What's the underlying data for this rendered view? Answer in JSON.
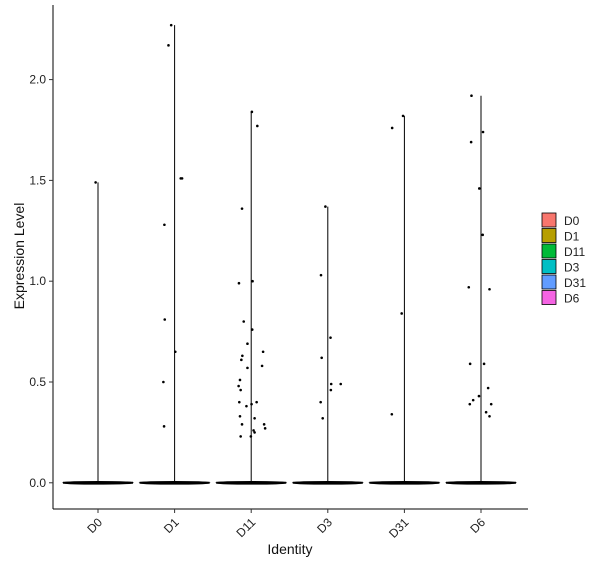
{
  "chart_data": {
    "type": "violin",
    "xlabel": "Identity",
    "ylabel": "Expression Level",
    "ylim": [
      -0.13,
      2.37
    ],
    "yticks": [
      "0.0",
      "0.5",
      "1.0",
      "1.5",
      "2.0"
    ],
    "ytick_values": [
      0.0,
      0.5,
      1.0,
      1.5,
      2.0
    ],
    "grid": false,
    "legend_position": "right",
    "categories": [
      "D0",
      "D1",
      "D11",
      "D3",
      "D31",
      "D6"
    ],
    "series": [
      {
        "name": "D0",
        "color": "#F8766D",
        "max": 1.49,
        "points": [
          [
            -0.07,
            1.49
          ]
        ]
      },
      {
        "name": "D1",
        "color": "#B79F00",
        "max": 2.27,
        "points": [
          [
            -0.1,
            2.27
          ],
          [
            -0.18,
            2.17
          ],
          [
            0.18,
            1.51
          ],
          [
            0.22,
            1.51
          ],
          [
            -0.3,
            1.28
          ],
          [
            -0.29,
            0.81
          ],
          [
            0.02,
            0.65
          ],
          [
            -0.33,
            0.5
          ],
          [
            -0.31,
            0.28
          ]
        ]
      },
      {
        "name": "D11",
        "color": "#00BA38",
        "max": 1.84,
        "points": [
          [
            0.02,
            1.84
          ],
          [
            0.18,
            1.77
          ],
          [
            -0.27,
            1.36
          ],
          [
            -0.36,
            0.99
          ],
          [
            0.04,
            1.0
          ],
          [
            -0.22,
            0.8
          ],
          [
            0.03,
            0.76
          ],
          [
            -0.11,
            0.69
          ],
          [
            -0.26,
            0.63
          ],
          [
            -0.29,
            0.61
          ],
          [
            0.35,
            0.65
          ],
          [
            -0.11,
            0.57
          ],
          [
            0.32,
            0.58
          ],
          [
            -0.37,
            0.48
          ],
          [
            -0.33,
            0.51
          ],
          [
            -0.31,
            0.46
          ],
          [
            -0.35,
            0.4
          ],
          [
            0.16,
            0.4
          ],
          [
            -0.14,
            0.38
          ],
          [
            0.01,
            0.39
          ],
          [
            -0.33,
            0.33
          ],
          [
            0.1,
            0.32
          ],
          [
            -0.27,
            0.29
          ],
          [
            0.38,
            0.29
          ],
          [
            0.41,
            0.27
          ],
          [
            0.07,
            0.26
          ],
          [
            0.1,
            0.25
          ],
          [
            -0.31,
            0.23
          ],
          [
            -0.01,
            0.23
          ]
        ]
      },
      {
        "name": "D3",
        "color": "#00BFC4",
        "max": 1.37,
        "points": [
          [
            -0.07,
            1.37
          ],
          [
            -0.2,
            1.03
          ],
          [
            0.08,
            0.72
          ],
          [
            -0.18,
            0.62
          ],
          [
            0.1,
            0.49
          ],
          [
            0.38,
            0.49
          ],
          [
            0.09,
            0.46
          ],
          [
            -0.21,
            0.4
          ],
          [
            -0.15,
            0.32
          ]
        ]
      },
      {
        "name": "D31",
        "color": "#619CFF",
        "max": 1.82,
        "points": [
          [
            -0.04,
            1.82
          ],
          [
            -0.36,
            1.76
          ],
          [
            -0.08,
            0.84
          ],
          [
            -0.37,
            0.34
          ]
        ]
      },
      {
        "name": "D6",
        "color": "#F564E3",
        "max": 1.92,
        "points": [
          [
            -0.28,
            1.92
          ],
          [
            0.06,
            1.74
          ],
          [
            -0.29,
            1.69
          ],
          [
            -0.05,
            1.46
          ],
          [
            0.05,
            1.23
          ],
          [
            -0.36,
            0.97
          ],
          [
            0.25,
            0.96
          ],
          [
            -0.32,
            0.59
          ],
          [
            0.09,
            0.59
          ],
          [
            0.21,
            0.47
          ],
          [
            -0.06,
            0.43
          ],
          [
            -0.23,
            0.41
          ],
          [
            -0.33,
            0.39
          ],
          [
            0.3,
            0.39
          ],
          [
            0.15,
            0.35
          ],
          [
            0.25,
            0.33
          ]
        ]
      }
    ]
  }
}
